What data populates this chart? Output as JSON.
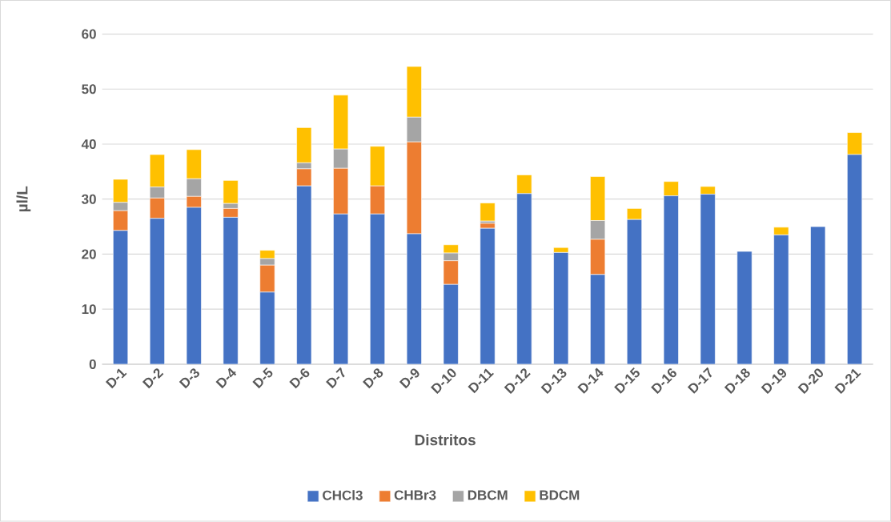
{
  "chart_data": {
    "type": "bar",
    "stacked": true,
    "xlabel": "Distritos",
    "ylabel": "µl/L",
    "categories": [
      "D-1",
      "D-2",
      "D-3",
      "D-4",
      "D-5",
      "D-6",
      "D-7",
      "D-8",
      "D-9",
      "D-10",
      "D-11",
      "D-12",
      "D-13",
      "D-14",
      "D-15",
      "D-16",
      "D-17",
      "D-18",
      "D-19",
      "D-20",
      "D-21"
    ],
    "series": [
      {
        "name": "CHCl3",
        "color": "#4472c4",
        "values": [
          24.3,
          26.5,
          28.5,
          26.7,
          13.1,
          32.4,
          27.3,
          27.3,
          23.7,
          14.5,
          24.7,
          31.0,
          20.3,
          16.3,
          26.3,
          30.6,
          30.9,
          20.5,
          23.5,
          25.0,
          38.1
        ]
      },
      {
        "name": "CHBr3",
        "color": "#ed7d31",
        "values": [
          3.6,
          3.7,
          2.0,
          1.6,
          4.9,
          3.1,
          8.3,
          5.1,
          16.7,
          4.3,
          0.9,
          0,
          0,
          6.4,
          0,
          0,
          0,
          0,
          0,
          0,
          0
        ]
      },
      {
        "name": "DBCM",
        "color": "#a5a5a5",
        "values": [
          1.5,
          2.0,
          3.2,
          0.9,
          1.2,
          1.1,
          3.5,
          0,
          4.5,
          1.4,
          0.4,
          0,
          0,
          3.4,
          0,
          0,
          0,
          0,
          0,
          0,
          0
        ]
      },
      {
        "name": "BDCM",
        "color": "#ffc000",
        "values": [
          4.2,
          5.9,
          5.3,
          4.2,
          1.5,
          6.4,
          9.8,
          7.2,
          9.2,
          1.5,
          3.3,
          3.4,
          0.9,
          8.0,
          2.0,
          2.6,
          1.4,
          0,
          1.4,
          0,
          4.0
        ]
      }
    ],
    "ylim": [
      0,
      60
    ],
    "yticks": [
      0,
      10,
      20,
      30,
      40,
      50,
      60
    ],
    "grid": "y",
    "legend": "bottom"
  }
}
